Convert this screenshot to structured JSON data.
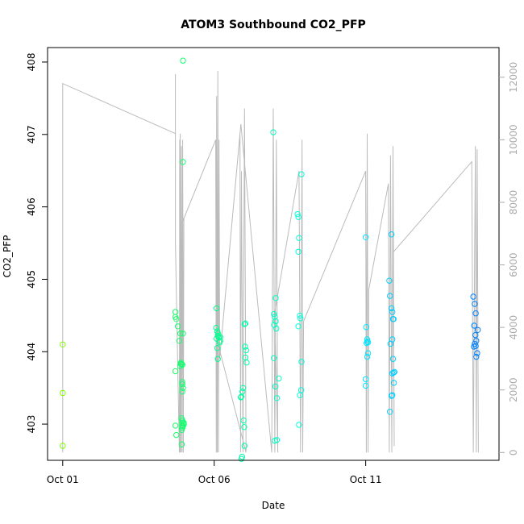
{
  "chart_data": {
    "type": "scatter",
    "title": "ATOM3 Southbound CO2_PFP",
    "xlabel": "Date",
    "ylabel": "CO2_PFP",
    "x_unit": "days in October",
    "xlim": [
      0.5,
      15.4
    ],
    "ylim": [
      402.5,
      408.2
    ],
    "x_ticks": [
      {
        "value": 1,
        "label": "Oct 01"
      },
      {
        "value": 6,
        "label": "Oct 06"
      },
      {
        "value": 11,
        "label": "Oct 11"
      }
    ],
    "y_ticks": [
      403,
      404,
      405,
      406,
      407,
      408
    ],
    "y2_ticks": [
      0,
      2000,
      4000,
      6000,
      8000,
      10000,
      12000
    ],
    "y2lim": [
      -250,
      12950
    ],
    "grid": false,
    "series": [
      {
        "kind": "points",
        "marker": "open-circle",
        "color_gradient": [
          "#80ff00",
          "#00ff80",
          "#00ffff",
          "#0080ff"
        ],
        "x": [
          1.0,
          1.0,
          1.0,
          4.72,
          4.72,
          4.72,
          4.75,
          4.72,
          4.75,
          4.8,
          4.88,
          4.85,
          4.9,
          4.88,
          4.92,
          4.95,
          4.97,
          4.95,
          4.92,
          4.95,
          4.99,
          4.95,
          4.97,
          4.95,
          4.95,
          4.93,
          4.93,
          4.97,
          4.97,
          4.9,
          4.95,
          4.95,
          4.97,
          5.0,
          6.08,
          6.07,
          6.1,
          6.12,
          6.08,
          6.13,
          6.15,
          6.2,
          6.18,
          6.1,
          6.12,
          6.2,
          6.88,
          6.9,
          6.93,
          6.95,
          6.97,
          6.99,
          6.92,
          6.9,
          7.0,
          7.02,
          7.05,
          7.03,
          7.07,
          7.03,
          7.0,
          7.95,
          7.97,
          8.0,
          8.03,
          7.98,
          8.05,
          8.03,
          7.97,
          8.02,
          8.07,
          8.13,
          8.0,
          8.07,
          8.75,
          8.78,
          8.8,
          8.78,
          8.83,
          8.85,
          8.78,
          8.88,
          8.87,
          8.83,
          8.8,
          8.88,
          11.0,
          11.02,
          11.05,
          11.08,
          11.03,
          11.08,
          11.05,
          11.0,
          11.0,
          11.05,
          11.78,
          11.8,
          11.85,
          11.88,
          11.92,
          11.88,
          11.82,
          11.9,
          11.95,
          11.92,
          11.93,
          11.88,
          11.85,
          11.8,
          11.85,
          11.9,
          11.88,
          14.55,
          14.6,
          14.63,
          14.58,
          14.62,
          14.65,
          14.6,
          14.63,
          14.57,
          14.68,
          14.65,
          14.7
        ],
        "y": [
          404.1,
          403.43,
          402.7,
          404.48,
          403.73,
          402.98,
          402.85,
          404.55,
          404.45,
          404.35,
          404.25,
          404.15,
          403.85,
          403.8,
          403.83,
          403.58,
          403.5,
          403.45,
          403.08,
          403.05,
          403.02,
          402.98,
          402.97,
          403.02,
          402.95,
          402.92,
          402.72,
          406.62,
          408.02,
          403.83,
          403.55,
          403.82,
          404.25,
          403.0,
          404.6,
          404.33,
          404.28,
          404.22,
          404.18,
          404.25,
          404.2,
          404.15,
          404.13,
          404.05,
          403.9,
          404.2,
          403.37,
          403.38,
          403.45,
          403.5,
          403.05,
          402.96,
          402.55,
          402.52,
          402.7,
          404.07,
          404.02,
          403.92,
          403.85,
          404.39,
          404.38,
          407.03,
          404.52,
          404.48,
          404.42,
          404.37,
          404.32,
          404.74,
          403.91,
          403.52,
          403.36,
          403.63,
          402.77,
          402.78,
          405.9,
          405.86,
          405.57,
          405.38,
          404.5,
          404.46,
          404.35,
          403.86,
          403.47,
          403.4,
          402.99,
          406.45,
          405.58,
          404.34,
          404.17,
          404.13,
          404.12,
          403.98,
          403.93,
          403.62,
          403.53,
          404.14,
          404.98,
          404.77,
          404.6,
          404.55,
          404.45,
          404.17,
          404.11,
          403.9,
          403.72,
          403.71,
          403.57,
          403.4,
          403.39,
          403.17,
          405.62,
          404.45,
          403.7,
          404.76,
          404.66,
          404.53,
          404.36,
          404.23,
          404.15,
          404.11,
          404.08,
          404.07,
          403.98,
          403.93,
          404.3
        ]
      },
      {
        "kind": "line",
        "axis": "right",
        "color": "#bbbbbb",
        "points": [
          [
            1.0,
            0
          ],
          [
            1.0,
            11800
          ],
          [
            4.72,
            10200
          ],
          [
            4.72,
            6800
          ],
          [
            4.72,
            12100
          ],
          [
            4.72,
            6700
          ],
          [
            4.85,
            0
          ],
          [
            4.86,
            10000
          ],
          [
            4.87,
            0
          ],
          [
            4.88,
            10200
          ],
          [
            4.9,
            0
          ],
          [
            4.92,
            9800
          ],
          [
            4.94,
            0
          ],
          [
            4.96,
            10000
          ],
          [
            4.98,
            0
          ],
          [
            5.0,
            7500
          ],
          [
            4.88,
            7200
          ],
          [
            6.05,
            10000
          ],
          [
            6.07,
            0
          ],
          [
            6.08,
            11400
          ],
          [
            6.1,
            0
          ],
          [
            6.12,
            12200
          ],
          [
            6.14,
            0
          ],
          [
            6.16,
            10000
          ],
          [
            6.18,
            3000
          ],
          [
            6.85,
            10200
          ],
          [
            6.87,
            0
          ],
          [
            6.9,
            9000
          ],
          [
            6.95,
            0
          ],
          [
            7.0,
            11000
          ],
          [
            7.05,
            0
          ],
          [
            6.2,
            3200
          ],
          [
            6.88,
            10500
          ],
          [
            7.9,
            0
          ],
          [
            7.95,
            11000
          ],
          [
            8.0,
            0
          ],
          [
            8.05,
            10000
          ],
          [
            8.1,
            0
          ],
          [
            8.0,
            4500
          ],
          [
            8.8,
            9000
          ],
          [
            8.85,
            0
          ],
          [
            8.9,
            10000
          ],
          [
            8.92,
            0
          ],
          [
            8.95,
            4200
          ],
          [
            11.0,
            9000
          ],
          [
            11.02,
            0
          ],
          [
            11.05,
            10200
          ],
          [
            11.08,
            0
          ],
          [
            11.1,
            5200
          ],
          [
            11.75,
            8600
          ],
          [
            11.78,
            0
          ],
          [
            11.82,
            9500
          ],
          [
            11.86,
            0
          ],
          [
            11.9,
            9800
          ],
          [
            11.94,
            200
          ],
          [
            11.9,
            6400
          ],
          [
            14.5,
            9300
          ],
          [
            14.55,
            0
          ],
          [
            14.62,
            9800
          ],
          [
            14.65,
            0
          ],
          [
            14.68,
            9700
          ],
          [
            14.72,
            0
          ]
        ]
      }
    ]
  }
}
